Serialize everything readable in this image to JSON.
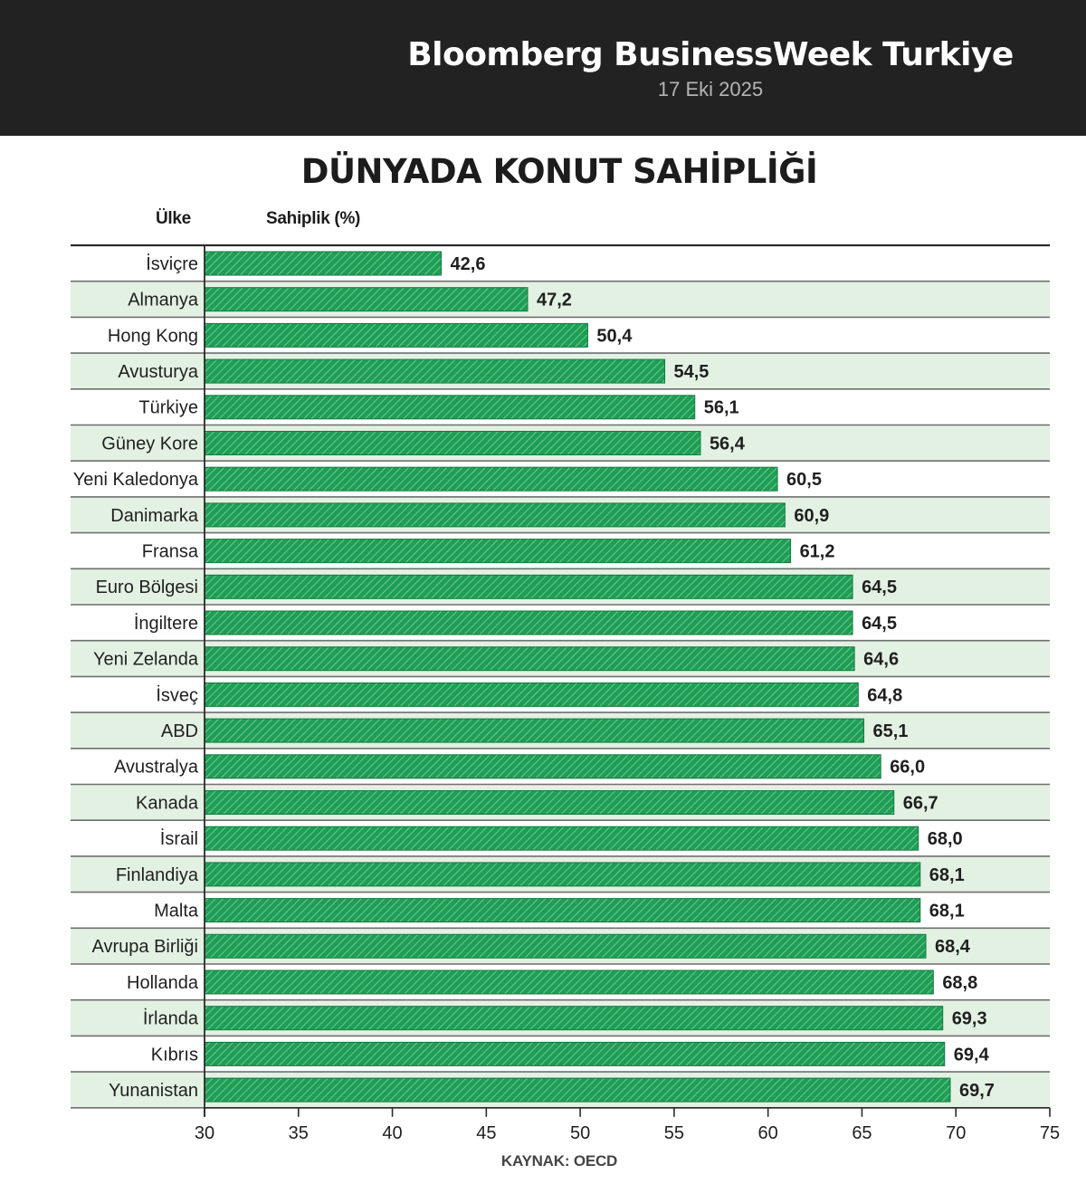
{
  "header": {
    "title": "Bloomberg BusinessWeek Turkiye",
    "date": "17 Eki 2025"
  },
  "columns": {
    "country": "Ülke",
    "value": "Sahiplik (%)"
  },
  "source": "KAYNAK: OECD",
  "colors": {
    "bar_fill": "#1f9e55",
    "bar_hatch": "#7fd4a0",
    "row_alt": "#e3f1e3",
    "header_bg": "#222222"
  },
  "chart_data": {
    "type": "bar",
    "orientation": "horizontal",
    "title": "DÜNYADA KONUT SAHİPLİĞİ",
    "xlabel": "",
    "ylabel": "",
    "xlim": [
      30,
      75
    ],
    "xticks": [
      "30",
      "35",
      "40",
      "45",
      "50",
      "55",
      "60",
      "65",
      "70",
      "75"
    ],
    "grid": false,
    "categories": [
      "İsviçre",
      "Almanya",
      "Hong Kong",
      "Avusturya",
      "Türkiye",
      "Güney Kore",
      "Yeni Kaledonya",
      "Danimarka",
      "Fransa",
      "Euro Bölgesi",
      "İngiltere",
      "Yeni Zelanda",
      "İsveç",
      "ABD",
      "Avustralya",
      "Kanada",
      "İsrail",
      "Finlandiya",
      "Malta",
      "Avrupa Birliği",
      "Hollanda",
      "İrlanda",
      "Kıbrıs",
      "Yunanistan"
    ],
    "values": [
      42.6,
      47.2,
      50.4,
      54.5,
      56.1,
      56.4,
      60.5,
      60.9,
      61.2,
      64.5,
      64.5,
      64.6,
      64.8,
      65.1,
      66.0,
      66.7,
      68.0,
      68.1,
      68.1,
      68.4,
      68.8,
      69.3,
      69.4,
      69.7
    ],
    "value_labels": [
      "42,6",
      "47,2",
      "50,4",
      "54,5",
      "56,1",
      "56,4",
      "60,5",
      "60,9",
      "61,2",
      "64,5",
      "64,5",
      "64,6",
      "64,8",
      "65,1",
      "66,0",
      "66,7",
      "68,0",
      "68,1",
      "68,1",
      "68,4",
      "68,8",
      "69,3",
      "69,4",
      "69,7"
    ]
  }
}
